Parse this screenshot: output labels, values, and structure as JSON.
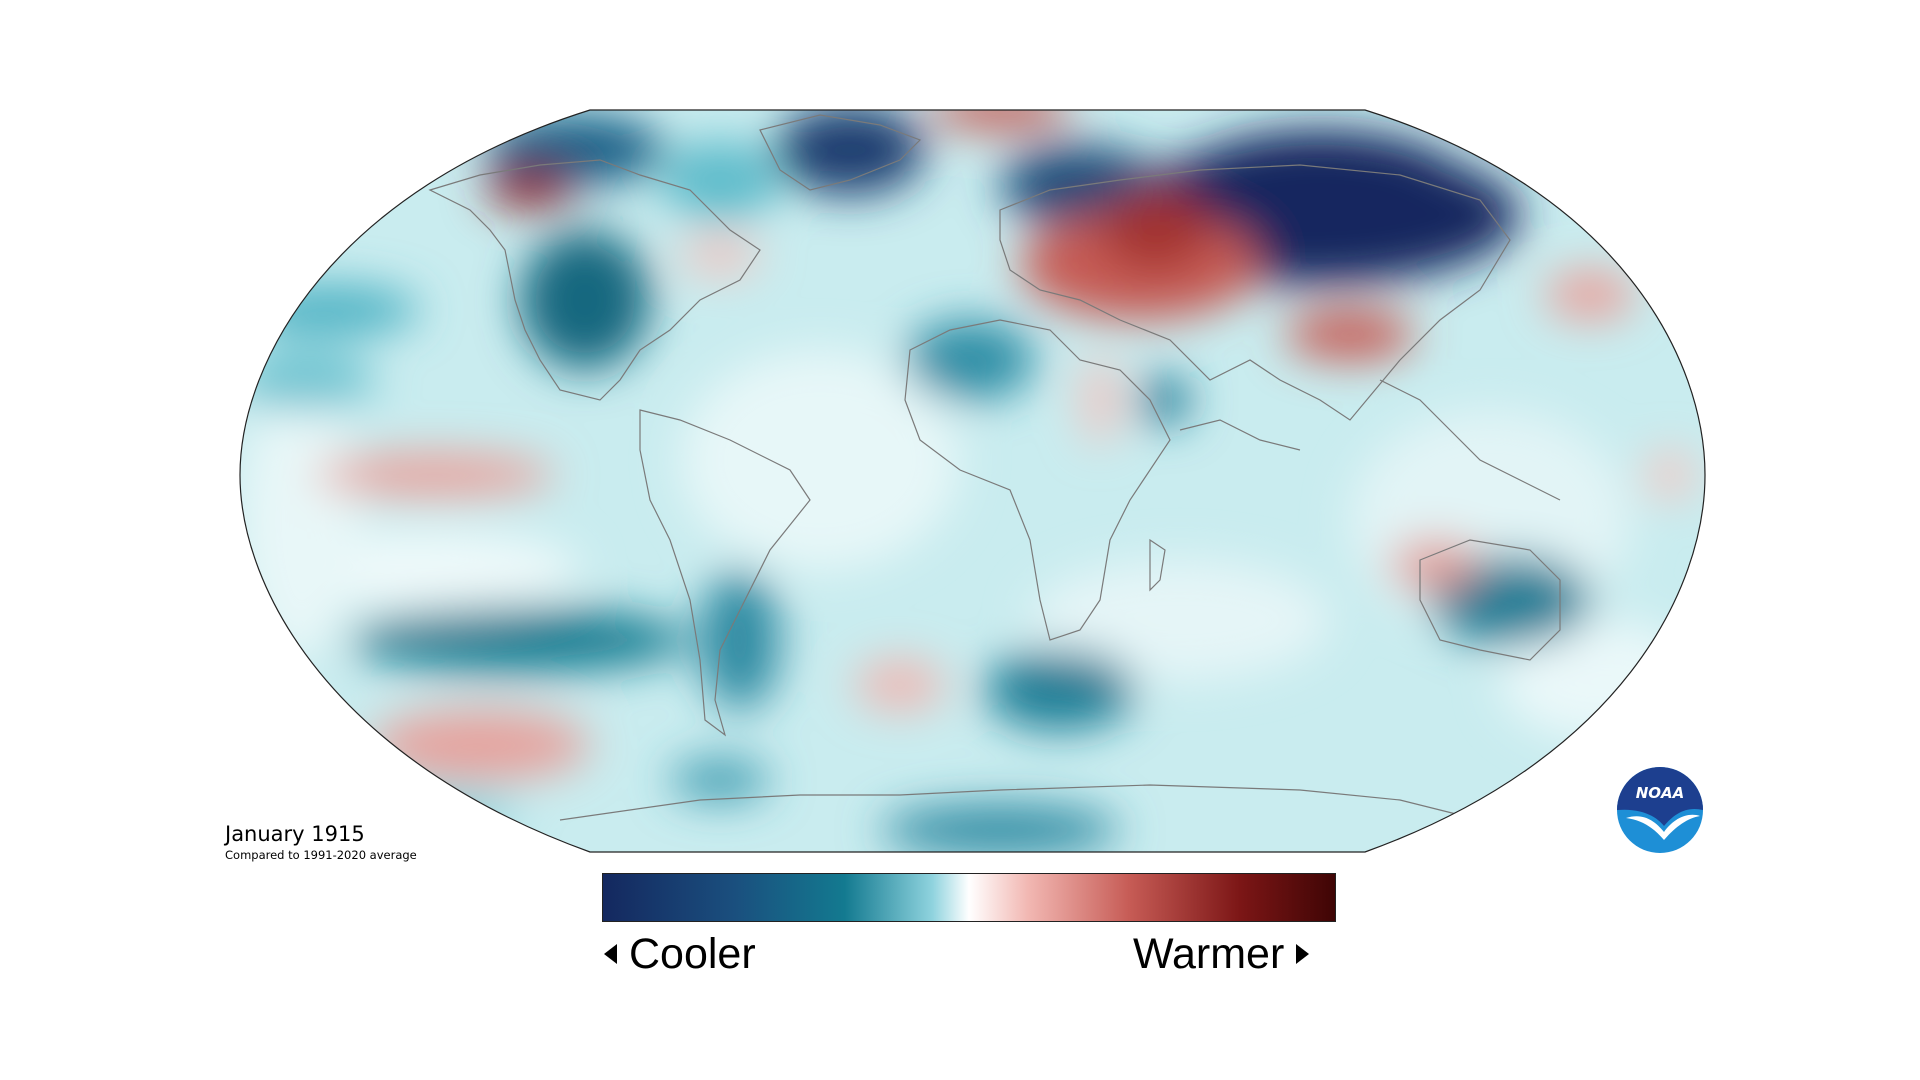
{
  "map": {
    "title": "January 1915",
    "subtitle": "Compared to 1991-2020 average",
    "projection": "robinson",
    "colors": {
      "cooler_end": "#14285f",
      "cool_mid": "#137a90",
      "neutral": "#ffffff",
      "warm_mid": "#c65b55",
      "warmer_end": "#4a0606",
      "ocean_bg": "#c9ecef",
      "coastline": "#7a7a7a"
    }
  },
  "legend": {
    "cooler_label": "Cooler",
    "warmer_label": "Warmer",
    "left_arrow_icon": "triangle-left-icon",
    "right_arrow_icon": "triangle-right-icon"
  },
  "logo": {
    "text": "NOAA",
    "icon": "noaa-logo-icon",
    "colors": {
      "dark": "#1d3f8f",
      "light": "#1e8fd6"
    }
  }
}
